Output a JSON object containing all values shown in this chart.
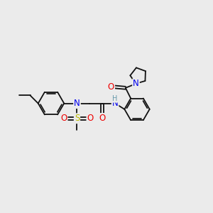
{
  "background_color": "#ebebeb",
  "fig_size": [
    3.0,
    3.0
  ],
  "dpi": 100,
  "atom_colors": {
    "C": "#000000",
    "N": "#0000ee",
    "O": "#ee0000",
    "S": "#bbbb00",
    "H": "#6699aa"
  },
  "bond_color": "#111111",
  "bond_width": 1.3,
  "font_size_atom": 8.5,
  "font_size_h": 7.0
}
